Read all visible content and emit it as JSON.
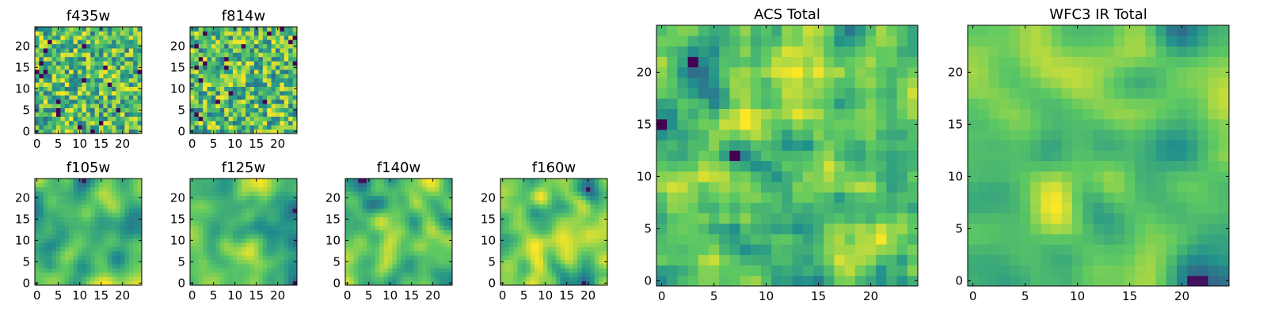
{
  "chart_data": {
    "type": "heatmap",
    "grid_size": 25,
    "colormap": [
      "#440154",
      "#3b528b",
      "#21918c",
      "#5ec962",
      "#fde725"
    ],
    "panels": [
      {
        "id": "f435w",
        "title": "f435w",
        "xticks": [
          0,
          5,
          10,
          15,
          20
        ],
        "yticks": [
          0,
          5,
          10,
          15,
          20
        ],
        "xlim": [
          0,
          24
        ],
        "ylim": [
          0,
          24
        ],
        "pattern": "noise"
      },
      {
        "id": "f814w",
        "title": "f814w",
        "xticks": [
          0,
          5,
          10,
          15,
          20
        ],
        "yticks": [
          0,
          5,
          10,
          15,
          20
        ],
        "xlim": [
          0,
          24
        ],
        "ylim": [
          0,
          24
        ],
        "pattern": "noise"
      },
      {
        "id": "f105w",
        "title": "f105w",
        "xticks": [
          0,
          5,
          10,
          15,
          20
        ],
        "yticks": [
          0,
          5,
          10,
          15,
          20
        ],
        "xlim": [
          0,
          24
        ],
        "ylim": [
          0,
          24
        ],
        "pattern": "smooth"
      },
      {
        "id": "f125w",
        "title": "f125w",
        "xticks": [
          0,
          5,
          10,
          15,
          20
        ],
        "yticks": [
          0,
          5,
          10,
          15,
          20
        ],
        "xlim": [
          0,
          24
        ],
        "ylim": [
          0,
          24
        ],
        "pattern": "smooth"
      },
      {
        "id": "f140w",
        "title": "f140w",
        "xticks": [
          0,
          5,
          10,
          15,
          20
        ],
        "yticks": [
          0,
          5,
          10,
          15,
          20
        ],
        "xlim": [
          0,
          24
        ],
        "ylim": [
          0,
          24
        ],
        "pattern": "smooth"
      },
      {
        "id": "f160w",
        "title": "f160w",
        "xticks": [
          0,
          5,
          10,
          15,
          20
        ],
        "yticks": [
          0,
          5,
          10,
          15,
          20
        ],
        "xlim": [
          0,
          24
        ],
        "ylim": [
          0,
          24
        ],
        "pattern": "smooth"
      },
      {
        "id": "acs_total",
        "title": "ACS Total",
        "xticks": [
          0,
          5,
          10,
          15,
          20
        ],
        "yticks": [
          0,
          5,
          10,
          15,
          20
        ],
        "xlim": [
          0,
          24
        ],
        "ylim": [
          0,
          24
        ],
        "pattern": "medium"
      },
      {
        "id": "wfc3_ir_total",
        "title": "WFC3 IR Total",
        "xticks": [
          0,
          5,
          10,
          15,
          20
        ],
        "yticks": [
          0,
          5,
          10,
          15,
          20
        ],
        "xlim": [
          0,
          24
        ],
        "ylim": [
          0,
          24
        ],
        "pattern": "smooth"
      }
    ]
  }
}
